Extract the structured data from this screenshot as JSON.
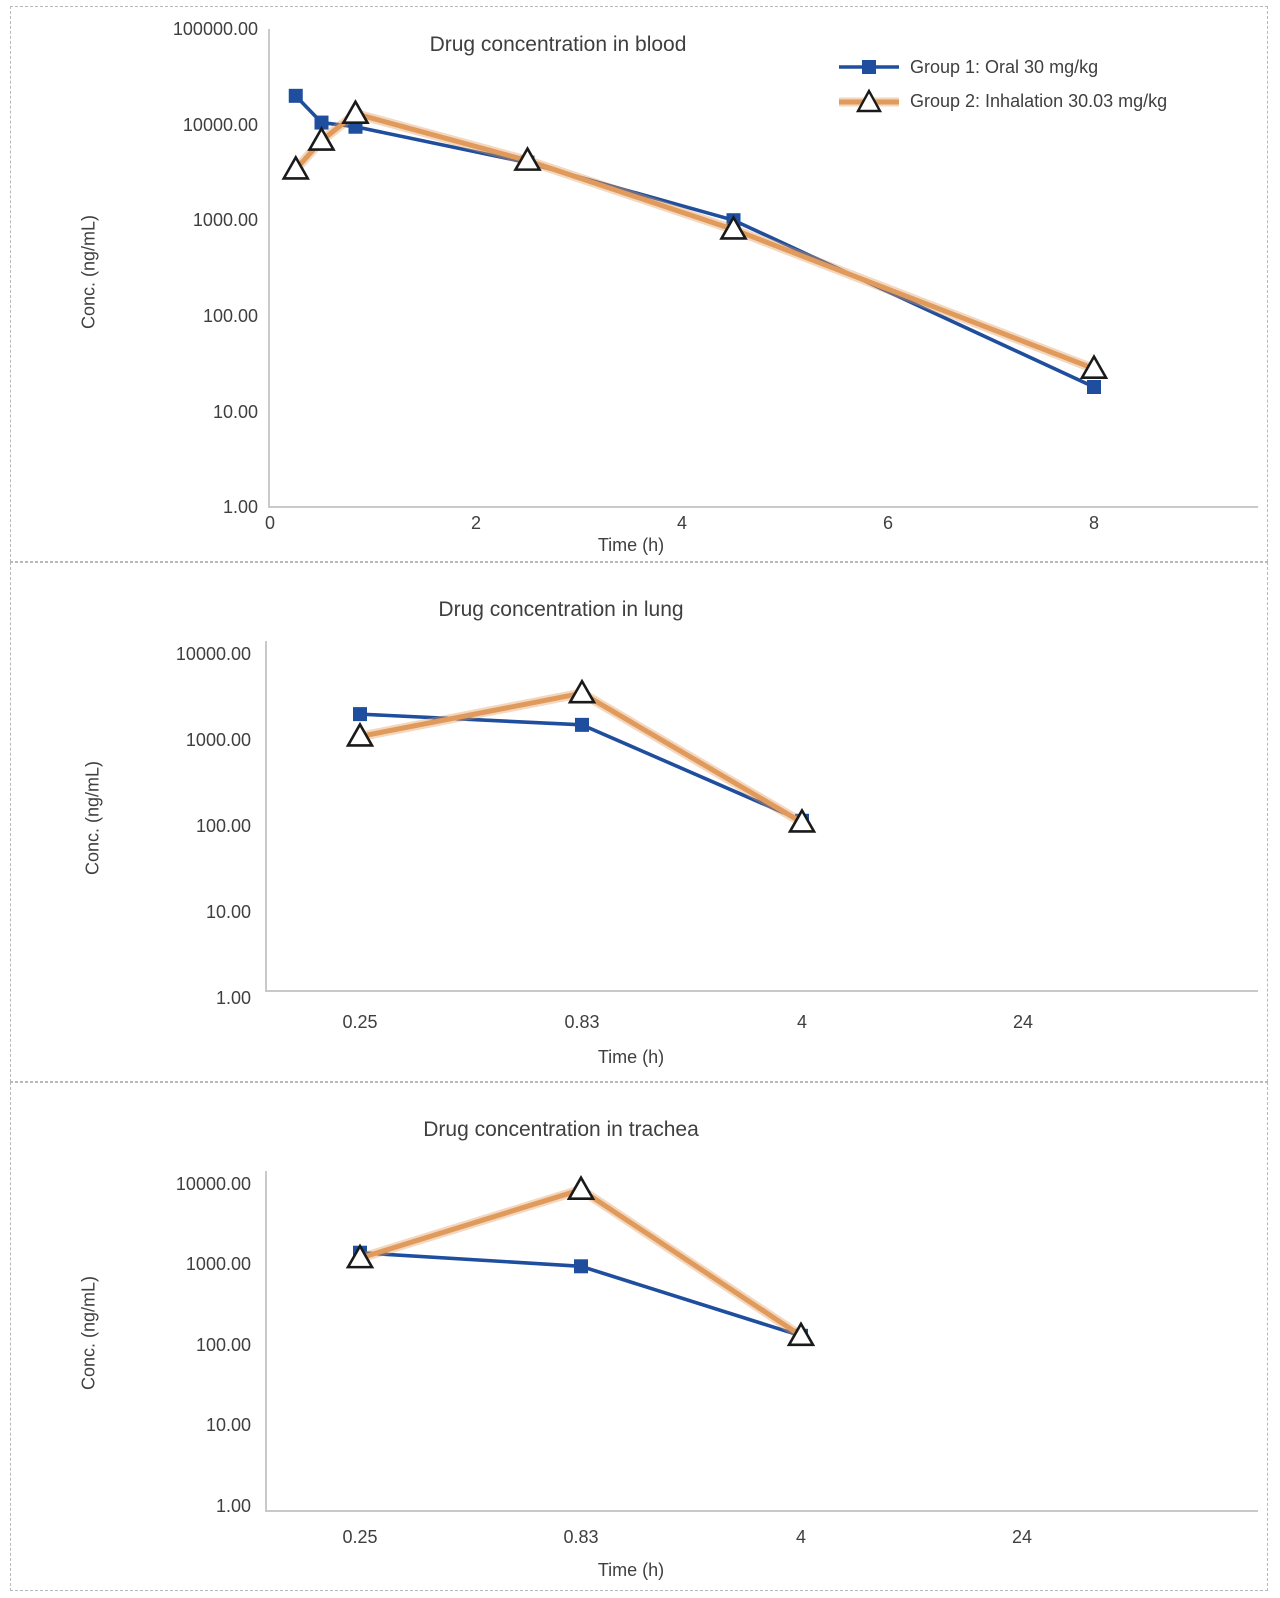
{
  "colors": {
    "group1_blue": "#1f4e9e",
    "group2_orange": "#e09a5c",
    "triangle_fill": "#ffffff",
    "triangle_stroke": "#1a1a1a",
    "axis_line": "#c9c9c9",
    "text": "#3f3f3f"
  },
  "legend": {
    "position": "top-right"
  },
  "chart_data": [
    {
      "type": "line",
      "title": "Drug concentration in blood",
      "xlabel": "Time (h)",
      "ylabel": "Conc. (ng/mL)",
      "x_scale": "linear",
      "y_scale": "log",
      "ylim": [
        1,
        100000
      ],
      "xlim": [
        0,
        8.5
      ],
      "grid": false,
      "legend_position": "top-right",
      "y_tick_labels": [
        "100000.00",
        "10000.00",
        "1000.00",
        "100.00",
        "10.00",
        "1.00"
      ],
      "x_tick_labels": [
        "0",
        "2",
        "4",
        "6",
        "8"
      ],
      "x_tick_values": [
        0,
        2,
        4,
        6,
        8
      ],
      "series": [
        {
          "name": "Group 1: Oral 30 mg/kg",
          "marker": "square",
          "color": "#1f4e9e",
          "x": [
            0.25,
            0.5,
            0.83,
            2.5,
            4.5,
            8
          ],
          "y": [
            20000,
            10500,
            9500,
            4000,
            1000,
            18
          ]
        },
        {
          "name": "Group 2: Inhalation 30.03 mg/kg",
          "marker": "triangle",
          "color": "#e09a5c",
          "x": [
            0.25,
            0.5,
            0.83,
            2.5,
            4.5,
            8
          ],
          "y": [
            3400,
            6800,
            13000,
            4200,
            800,
            28
          ]
        }
      ]
    },
    {
      "type": "line",
      "title": "Drug concentration in lung",
      "xlabel": "Time (h)",
      "ylabel": "Conc. (ng/mL)",
      "x_scale": "category",
      "y_scale": "log",
      "ylim": [
        1,
        10000
      ],
      "grid": false,
      "y_tick_labels": [
        "10000.00",
        "1000.00",
        "100.00",
        "10.00",
        "1.00"
      ],
      "categories": [
        "0.25",
        "0.83",
        "4",
        "24"
      ],
      "series": [
        {
          "name": "Group 1: Oral 30 mg/kg",
          "marker": "square",
          "color": "#1f4e9e",
          "y": [
            2000,
            1500,
            115,
            null
          ]
        },
        {
          "name": "Group 2: Inhalation 30.03 mg/kg",
          "marker": "triangle",
          "color": "#e09a5c",
          "y": [
            1100,
            3500,
            110,
            null
          ]
        }
      ]
    },
    {
      "type": "line",
      "title": "Drug concentration in trachea",
      "xlabel": "Time (h)",
      "ylabel": "Conc. (ng/mL)",
      "x_scale": "category",
      "y_scale": "log",
      "ylim": [
        1,
        10000
      ],
      "grid": false,
      "y_tick_labels": [
        "10000.00",
        "1000.00",
        "100.00",
        "10.00",
        "1.00"
      ],
      "categories": [
        "0.25",
        "0.83",
        "4",
        "24"
      ],
      "series": [
        {
          "name": "Group 1: Oral 30 mg/kg",
          "marker": "square",
          "color": "#1f4e9e",
          "y": [
            1400,
            950,
            130,
            null
          ]
        },
        {
          "name": "Group 2: Inhalation 30.03 mg/kg",
          "marker": "triangle",
          "color": "#e09a5c",
          "y": [
            1200,
            8500,
            130,
            null
          ]
        }
      ]
    }
  ]
}
